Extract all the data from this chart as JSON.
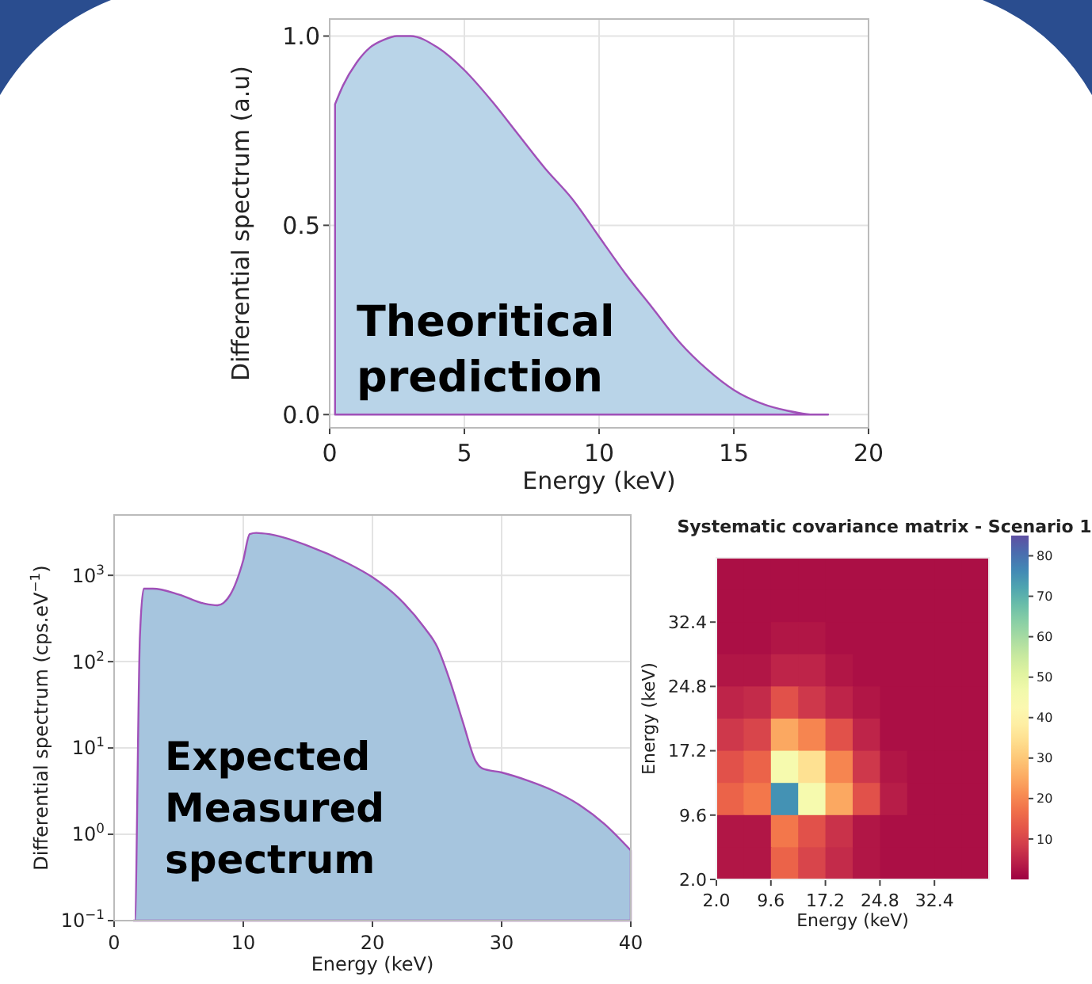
{
  "chart_data": [
    {
      "type": "area",
      "xlabel": "Energy (keV)",
      "ylabel": "Differential spectrum (a.u)",
      "annotations": [
        "Theoritical prediction"
      ],
      "x": [
        0.2,
        0.5,
        1,
        1.5,
        2,
        2.5,
        3,
        4,
        5,
        6,
        7,
        8,
        9,
        10,
        11,
        12,
        13,
        14,
        15,
        16,
        17,
        18,
        18.5
      ],
      "series": [
        {
          "color": "#b9d4e8",
          "values": [
            0.82,
            0.87,
            0.93,
            0.97,
            0.99,
            1.0,
            1.0,
            0.97,
            0.91,
            0.83,
            0.74,
            0.65,
            0.57,
            0.47,
            0.37,
            0.28,
            0.19,
            0.12,
            0.065,
            0.03,
            0.01,
            0.0,
            0.0
          ]
        }
      ],
      "xlim": [
        0,
        20
      ],
      "xticks": [
        0,
        5,
        10,
        15,
        20
      ],
      "ylim": [
        -0.035,
        1.045
      ],
      "yticks": [
        {
          "value": 0,
          "label": "0.0"
        },
        {
          "value": 0.5,
          "label": "0.5"
        },
        {
          "value": 1,
          "label": "1.0"
        }
      ],
      "grid": true
    },
    {
      "type": "area",
      "xlabel": "Energy (keV)",
      "ylabel": "Differential spectrum (cps.eV$^{−1}$)",
      "annotations": [
        "Expected Measured spectrum"
      ],
      "log": "y",
      "x": [
        1.5,
        1.6,
        2,
        2.3,
        3,
        5,
        7,
        8,
        9,
        10,
        10.5,
        11,
        12,
        15,
        18,
        20,
        22,
        24,
        25,
        26,
        27,
        28,
        28.5,
        30,
        32,
        34,
        36,
        38,
        40
      ],
      "series": [
        {
          "color": "#a6c5de",
          "values": [
            0.1,
            0.1,
            200,
            700,
            700,
            600,
            470,
            450,
            600,
            1500,
            3000,
            3100,
            3000,
            2200,
            1400,
            950,
            550,
            250,
            150,
            60,
            20,
            7,
            5.8,
            5.2,
            4.2,
            3.2,
            2.2,
            1.3,
            0.65
          ]
        }
      ],
      "xlim": [
        0,
        40
      ],
      "xticks": [
        0,
        10,
        20,
        30,
        40
      ],
      "ylim": [
        0.1,
        5000
      ],
      "yticks": [
        {
          "value": 0.1,
          "label": "10$^{−1}$"
        },
        {
          "value": 1,
          "label": "10$^{0}$"
        },
        {
          "value": 10,
          "label": "10$^{1}$"
        },
        {
          "value": 100,
          "label": "10$^{2}$"
        },
        {
          "value": 1000,
          "label": "10$^{3}$"
        }
      ],
      "grid": true
    },
    {
      "type": "heatmap",
      "title": "Systematic covariance matrix - Scenario 1",
      "xlabel": "Energy (keV)",
      "ylabel": "Energy (keV)",
      "xlim": [
        2,
        40
      ],
      "ylim": [
        2,
        40
      ],
      "xticks": [
        {
          "value": 2,
          "label": "2.0"
        },
        9.6,
        17.2,
        24.8,
        32.4
      ],
      "yticks": [
        {
          "value": 2,
          "label": "2.0"
        },
        9.6,
        17.2,
        24.8,
        32.4
      ],
      "cells": [
        [
          2,
          2,
          2,
          2,
          2,
          2,
          2,
          2,
          2,
          2
        ],
        [
          2,
          2,
          2,
          2,
          2,
          2,
          2,
          2,
          2,
          2
        ],
        [
          2,
          2,
          3,
          3,
          2,
          2,
          2,
          2,
          2,
          2
        ],
        [
          3,
          3,
          5,
          5,
          3,
          2,
          2,
          2,
          2,
          2
        ],
        [
          5,
          6,
          12,
          8,
          5,
          3,
          2,
          2,
          2,
          2
        ],
        [
          8,
          10,
          25,
          20,
          12,
          5,
          2,
          2,
          2,
          2
        ],
        [
          12,
          15,
          45,
          35,
          20,
          8,
          3,
          2,
          2,
          2
        ],
        [
          15,
          18,
          75,
          45,
          25,
          12,
          4,
          2,
          2,
          2
        ],
        [
          3,
          3,
          18,
          12,
          7,
          3,
          2,
          2,
          2,
          2
        ],
        [
          3,
          3,
          15,
          10,
          6,
          3,
          2,
          2,
          2,
          2
        ]
      ],
      "clim": [
        0,
        85
      ],
      "cticks": [
        10,
        20,
        30,
        40,
        50,
        60,
        70,
        80
      ]
    }
  ]
}
